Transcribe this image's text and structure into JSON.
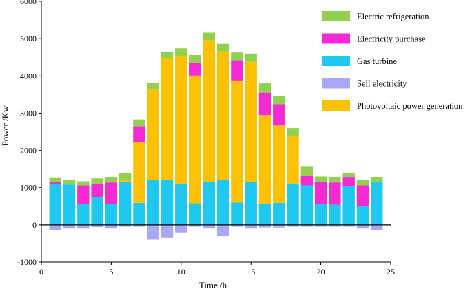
{
  "chart_data": {
    "type": "bar",
    "stacked": true,
    "title": "",
    "xlabel": "Time /h",
    "ylabel": "Power /Kw",
    "xlim": [
      0,
      25
    ],
    "ylim": [
      -1000,
      6000
    ],
    "xticks": [
      0,
      5,
      10,
      15,
      20,
      25
    ],
    "yticks": [
      -1000,
      0,
      1000,
      2000,
      3000,
      4000,
      5000,
      6000
    ],
    "x": [
      1,
      2,
      3,
      4,
      5,
      6,
      7,
      8,
      9,
      10,
      11,
      12,
      13,
      14,
      15,
      16,
      17,
      18,
      19,
      20,
      21,
      22,
      23,
      24
    ],
    "colors": {
      "gas_turbine": "#1EC8F0",
      "photovoltaic": "#FDC103",
      "electricity_purchase": "#F52AD2",
      "electric_refrigeration": "#92D050",
      "sell_electricity": "#A8A8F5",
      "zero_line": "#000000"
    },
    "series": [
      {
        "key": "gas_turbine",
        "name": "Gas turbine",
        "values": [
          1100,
          1080,
          560,
          740,
          560,
          1150,
          590,
          1200,
          1200,
          1100,
          580,
          1150,
          1200,
          600,
          1160,
          570,
          590,
          1100,
          1060,
          560,
          540,
          1050,
          500,
          1150
        ]
      },
      {
        "key": "photovoltaic",
        "name": "Photovoltaic power generation",
        "values": [
          0,
          0,
          0,
          0,
          0,
          50,
          1640,
          2430,
          3270,
          3440,
          3430,
          3810,
          3460,
          3260,
          3220,
          2380,
          2080,
          1290,
          0,
          0,
          0,
          0,
          0,
          0
        ]
      },
      {
        "key": "electricity_purchase",
        "name": "Electricity purchase",
        "values": [
          60,
          0,
          500,
          350,
          580,
          0,
          420,
          0,
          0,
          0,
          340,
          0,
          0,
          560,
          0,
          600,
          570,
          0,
          250,
          600,
          600,
          220,
          560,
          0
        ]
      },
      {
        "key": "electric_refrigeration",
        "name": "Electric refrigeration",
        "values": [
          100,
          120,
          110,
          160,
          150,
          190,
          180,
          180,
          180,
          200,
          210,
          200,
          200,
          210,
          220,
          250,
          210,
          210,
          250,
          140,
          150,
          120,
          140,
          130
        ]
      },
      {
        "key": "sell_electricity",
        "name": "Sell electricity",
        "values": [
          -150,
          -100,
          -100,
          -60,
          -100,
          -50,
          -50,
          -400,
          -350,
          -200,
          -50,
          -100,
          -300,
          -50,
          -100,
          -70,
          -70,
          -50,
          -50,
          -50,
          -50,
          -50,
          -100,
          -150
        ]
      }
    ],
    "legend": {
      "position": "top-right",
      "entries": [
        {
          "key": "electric_refrigeration",
          "label": "Electric refrigeration"
        },
        {
          "key": "electricity_purchase",
          "label": "Electricity purchase"
        },
        {
          "key": "gas_turbine",
          "label": "Gas turbine"
        },
        {
          "key": "sell_electricity",
          "label": "Sell electricity"
        },
        {
          "key": "photovoltaic",
          "label": "Photovoltaic power generation"
        }
      ]
    }
  }
}
